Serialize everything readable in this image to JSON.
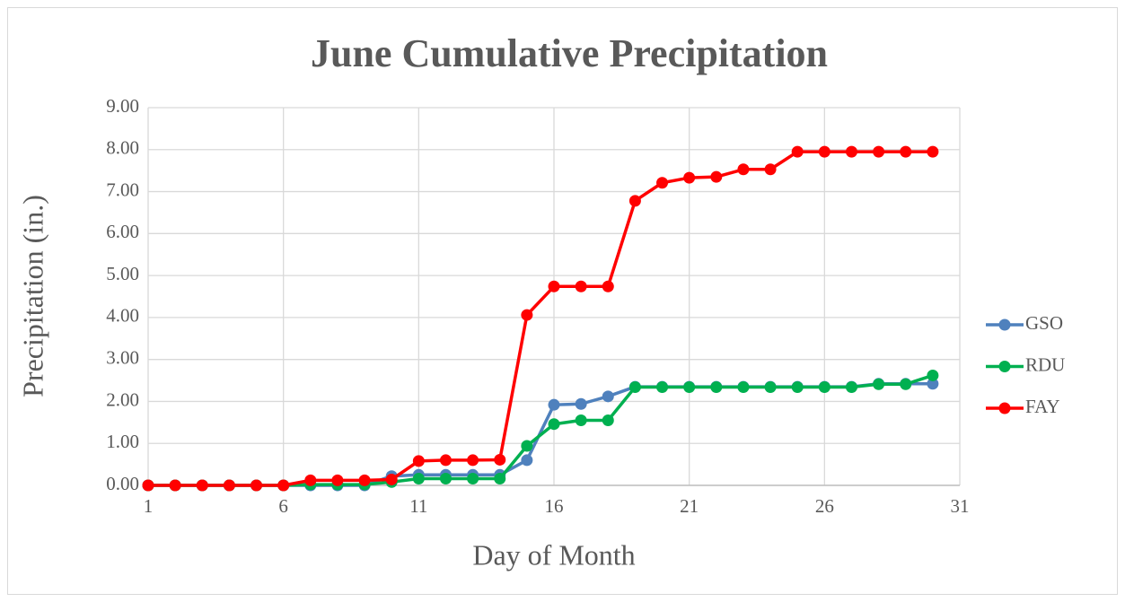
{
  "chart_data": {
    "type": "line",
    "title": "June Cumulative Precipitation",
    "x_label": "Day of Month",
    "y_label": "Precipitation (in.)",
    "x": [
      1,
      2,
      3,
      4,
      5,
      6,
      7,
      8,
      9,
      10,
      11,
      12,
      13,
      14,
      15,
      16,
      17,
      18,
      19,
      20,
      21,
      22,
      23,
      24,
      25,
      26,
      27,
      28,
      29,
      30
    ],
    "series": [
      {
        "name": "GSO",
        "color": "#4f81bd",
        "values": [
          0,
          0,
          0,
          0,
          0,
          0,
          0,
          0,
          0,
          0.22,
          0.25,
          0.25,
          0.25,
          0.25,
          0.6,
          1.92,
          1.94,
          2.12,
          2.35,
          2.35,
          2.35,
          2.35,
          2.35,
          2.35,
          2.35,
          2.35,
          2.35,
          2.42,
          2.42,
          2.42
        ]
      },
      {
        "name": "RDU",
        "color": "#00b050",
        "values": [
          0,
          0,
          0,
          0,
          0,
          0,
          0.02,
          0.02,
          0.02,
          0.08,
          0.16,
          0.16,
          0.16,
          0.16,
          0.94,
          1.46,
          1.55,
          1.55,
          2.34,
          2.34,
          2.34,
          2.34,
          2.34,
          2.34,
          2.34,
          2.34,
          2.34,
          2.41,
          2.41,
          2.62
        ]
      },
      {
        "name": "FAY",
        "color": "#ff0000",
        "values": [
          0,
          0,
          0,
          0,
          0,
          0,
          0.12,
          0.12,
          0.12,
          0.14,
          0.58,
          0.6,
          0.6,
          0.61,
          4.06,
          4.74,
          4.74,
          4.74,
          6.78,
          7.21,
          7.33,
          7.35,
          7.53,
          7.53,
          7.95,
          7.95,
          7.95,
          7.95,
          7.95,
          7.95
        ]
      }
    ],
    "xlim": [
      1,
      31
    ],
    "xticks": [
      1,
      6,
      11,
      16,
      21,
      26,
      31
    ],
    "ylim": [
      0,
      9
    ],
    "yticks": [
      {
        "value": 0,
        "label": "0.00"
      },
      {
        "value": 1,
        "label": "1.00"
      },
      {
        "value": 2,
        "label": "2.00"
      },
      {
        "value": 3,
        "label": "3.00"
      },
      {
        "value": 4,
        "label": "4.00"
      },
      {
        "value": 5,
        "label": "5.00"
      },
      {
        "value": 6,
        "label": "6.00"
      },
      {
        "value": 7,
        "label": "7.00"
      },
      {
        "value": 8,
        "label": "8.00"
      },
      {
        "value": 9,
        "label": "9.00"
      }
    ],
    "grid": true,
    "legend": "right"
  }
}
